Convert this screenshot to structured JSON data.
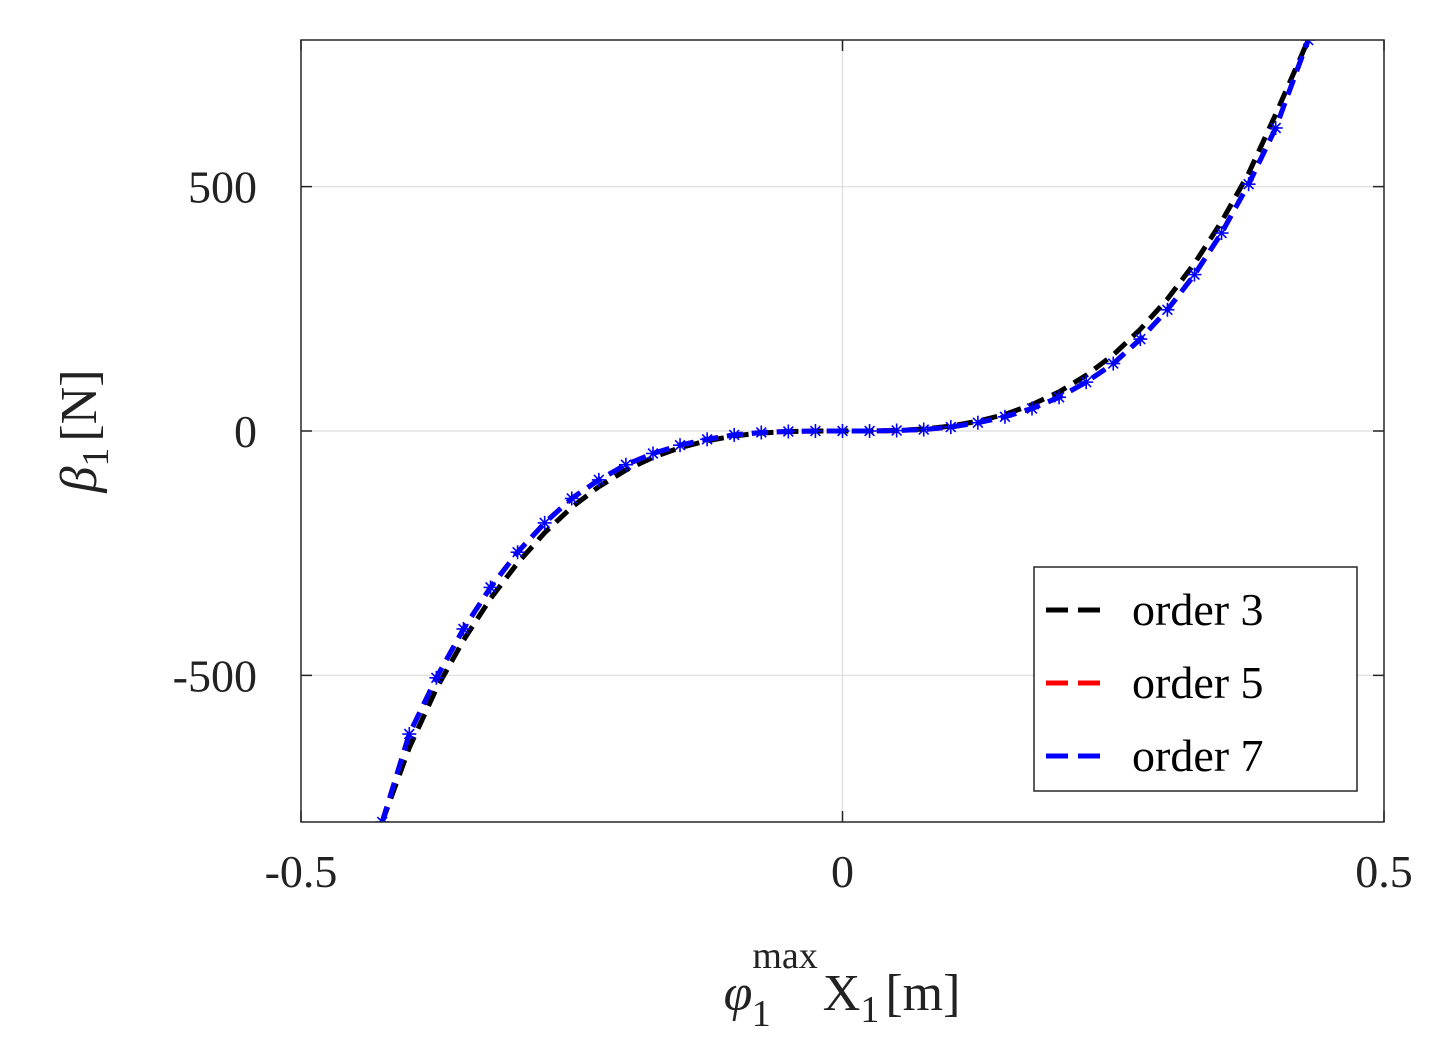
{
  "chart_data": {
    "type": "line",
    "xlabel": {
      "symbol": "φ",
      "sub": "1",
      "sup": "max",
      "rest": "X",
      "rest_sub": "1",
      "unit": "[m]"
    },
    "ylabel": {
      "symbol": "β",
      "sub": "1",
      "unit": "[N]"
    },
    "xlim": [
      -0.5,
      0.5
    ],
    "ylim": [
      -800,
      800
    ],
    "xticks": [
      -0.5,
      0,
      0.5
    ],
    "xtick_labels": [
      "-0.5",
      "0",
      "0.5"
    ],
    "yticks": [
      -500,
      0,
      500
    ],
    "ytick_labels": [
      "-500",
      "0",
      "500"
    ],
    "grid": true,
    "legend_position": "bottom-right",
    "series": [
      {
        "name": "order 3",
        "color": "#000000",
        "style": "dashed",
        "marker": "none",
        "x": [
          -0.425,
          -0.4,
          -0.375,
          -0.35,
          -0.325,
          -0.3,
          -0.275,
          -0.25,
          -0.225,
          -0.2,
          -0.175,
          -0.15,
          -0.125,
          -0.1,
          -0.075,
          -0.05,
          -0.025,
          0,
          0.025,
          0.05,
          0.075,
          0.1,
          0.125,
          0.15,
          0.175,
          0.2,
          0.225,
          0.25,
          0.275,
          0.3,
          0.325,
          0.35,
          0.375,
          0.4,
          0.43
        ],
        "y": [
          -800,
          -648,
          -527,
          -428,
          -343,
          -270,
          -208,
          -156,
          -114,
          -80,
          -54,
          -34,
          -20,
          -10,
          -4,
          -1,
          0,
          0,
          0,
          1,
          4,
          10,
          20,
          34,
          54,
          80,
          114,
          156,
          208,
          270,
          343,
          428,
          527,
          648,
          800
        ]
      },
      {
        "name": "order 5",
        "color": "#ff0000",
        "style": "dashed",
        "marker": "none",
        "x": [
          -0.425,
          -0.4,
          -0.375,
          -0.35,
          -0.325,
          -0.3,
          -0.275,
          -0.25,
          -0.225,
          -0.2,
          -0.175,
          -0.15,
          -0.125,
          -0.1,
          -0.075,
          -0.05,
          -0.025,
          0,
          0.025,
          0.05,
          0.075,
          0.1,
          0.125,
          0.15,
          0.175,
          0.2,
          0.225,
          0.25,
          0.275,
          0.3,
          0.325,
          0.35,
          0.375,
          0.4,
          0.43
        ],
        "y": [
          -800,
          -620,
          -505,
          -405,
          -320,
          -248,
          -188,
          -138,
          -100,
          -69,
          -46,
          -29,
          -17,
          -8,
          -3,
          -1,
          0,
          0,
          0,
          1,
          3,
          8,
          17,
          29,
          46,
          69,
          100,
          138,
          188,
          248,
          320,
          405,
          505,
          620,
          800
        ]
      },
      {
        "name": "order 7",
        "color": "#0000ff",
        "style": "dashed",
        "marker": "asterisk",
        "x": [
          -0.425,
          -0.4,
          -0.375,
          -0.35,
          -0.325,
          -0.3,
          -0.275,
          -0.25,
          -0.225,
          -0.2,
          -0.175,
          -0.15,
          -0.125,
          -0.1,
          -0.075,
          -0.05,
          -0.025,
          0,
          0.025,
          0.05,
          0.075,
          0.1,
          0.125,
          0.15,
          0.175,
          0.2,
          0.225,
          0.25,
          0.275,
          0.3,
          0.325,
          0.35,
          0.375,
          0.4,
          0.43
        ],
        "y": [
          -800,
          -620,
          -505,
          -405,
          -320,
          -248,
          -188,
          -138,
          -100,
          -69,
          -46,
          -29,
          -17,
          -8,
          -3,
          -1,
          0,
          0,
          0,
          1,
          3,
          8,
          17,
          29,
          46,
          69,
          100,
          138,
          188,
          248,
          320,
          405,
          505,
          620,
          800
        ]
      }
    ]
  }
}
